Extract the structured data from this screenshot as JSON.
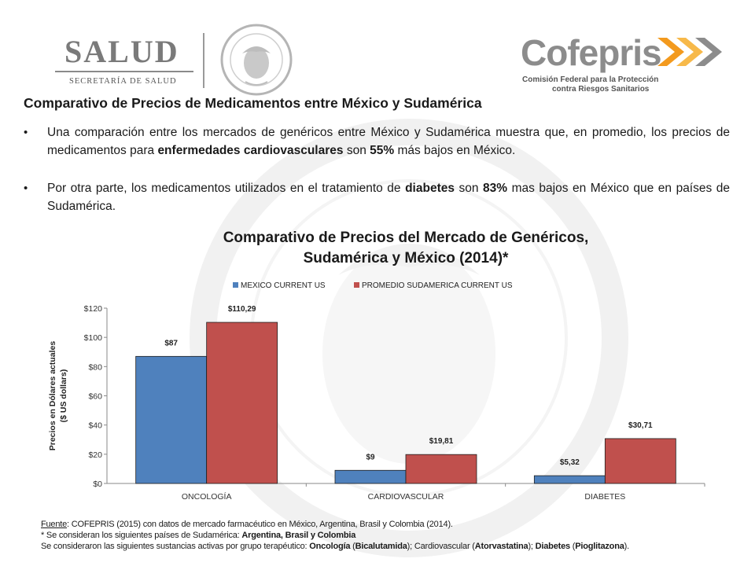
{
  "header": {
    "salud_logo": {
      "word": "SALUD",
      "subtitle": "SECRETARÍA DE SALUD"
    },
    "cofepris_logo": {
      "word": "Cofepris",
      "subtitle_line1": "Comisión Federal para la Protección",
      "subtitle_line2": "contra Riesgos Sanitarios"
    },
    "seal_text": "ESTADOS UNIDOS MEXICANOS"
  },
  "page_title": "Comparativo de Precios de Medicamentos entre México y Sudamérica",
  "bullets": [
    {
      "pre": "Una comparación entre los mercados de genéricos entre México y Sudamérica muestra que, en promedio, los precios de medicamentos para ",
      "bold1": "enfermedades cardiovasculares",
      "mid": " son ",
      "bold2": "55%",
      "post": " más bajos en México."
    },
    {
      "pre": "Por otra parte, los medicamentos utilizados en el tratamiento de ",
      "bold1": "diabetes",
      "mid": " son ",
      "bold2": "83%",
      "post": " mas bajos en México que en países de Sudamérica."
    }
  ],
  "chart_data": {
    "type": "bar",
    "title_line1": "Comparativo de Precios del Mercado de Genéricos,",
    "title_line2": "Sudamérica y México (2014)*",
    "ylabel_line1": "Precios en Dólares actuales",
    "ylabel_line2": "($ US dollars)",
    "categories": [
      "ONCOLOGÍA",
      "CARDIOVASCULAR",
      "DIABETES"
    ],
    "series": [
      {
        "name": "MEXICO CURRENT US",
        "color": "#4f81bd",
        "values": [
          87,
          9,
          5.32
        ],
        "labels": [
          "$87",
          "$9",
          "$5,32"
        ]
      },
      {
        "name": "PROMEDIO SUDAMERICA CURRENT US",
        "color": "#c0504d",
        "values": [
          110.29,
          19.81,
          30.71
        ],
        "labels": [
          "$110,29",
          "$19,81",
          "$30,71"
        ]
      }
    ],
    "ylim": [
      0,
      120
    ],
    "yticks": [
      0,
      20,
      40,
      60,
      80,
      100,
      120
    ],
    "ytick_labels": [
      "$0",
      "$20",
      "$40",
      "$60",
      "$80",
      "$100",
      "$120"
    ],
    "grid": false,
    "legend_position": "top"
  },
  "footnotes": {
    "source_label": "Fuente",
    "source_text": ": COFEPRIS (2015) con datos de mercado farmacéutico en México, Argentina, Brasil y Colombia (2014).",
    "countries_pre": "* Se consideran los siguientes países de Sudamérica: ",
    "countries_bold": "Argentina, Brasil y Colombia",
    "substances_pre": "Se consideraron las siguientes sustancias activas por grupo terapéutico: ",
    "onc_label": "Oncología",
    "onc_drug": "Bicalutamida",
    "cardio_label": "Cardiovascular",
    "cardio_drug": "Atorvastatina",
    "diab_label": "Diabetes",
    "diab_drug": "Pioglitazona"
  }
}
